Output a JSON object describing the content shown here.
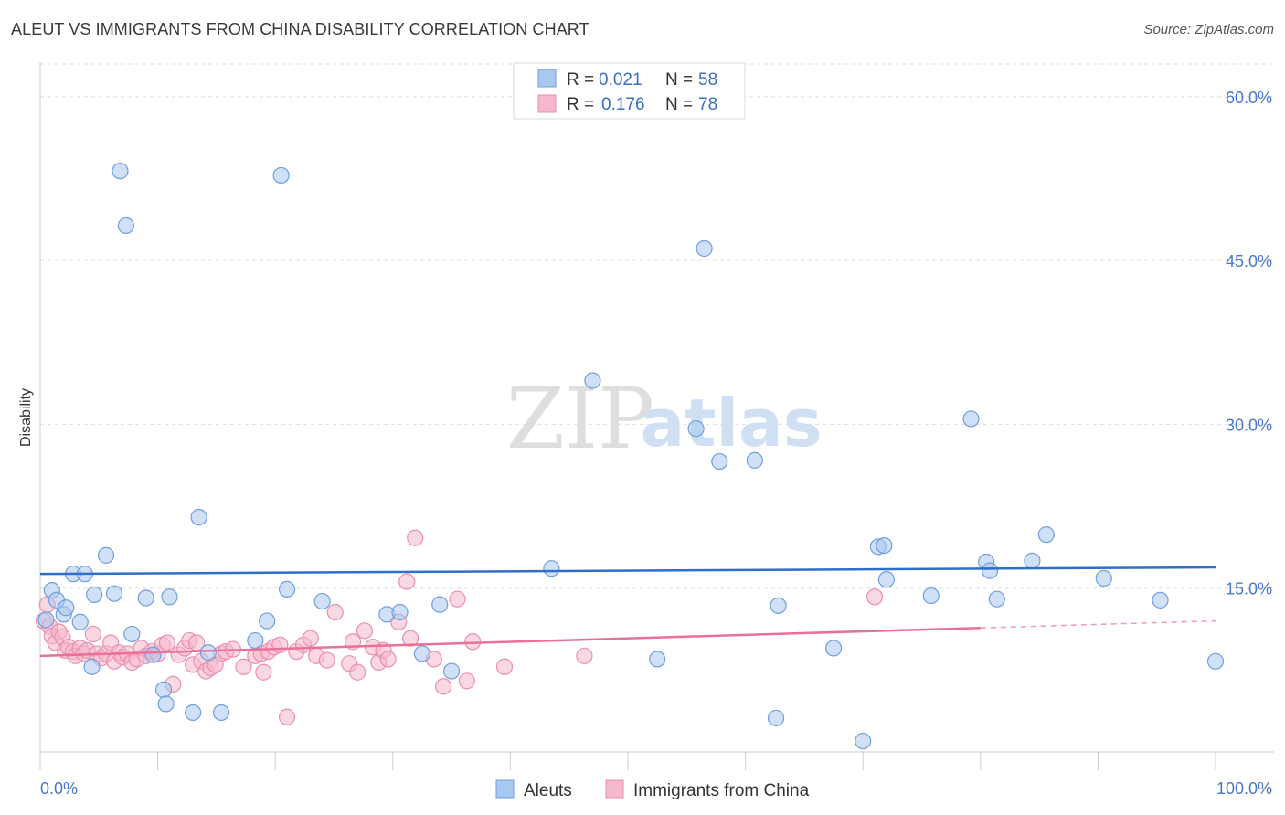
{
  "title": "ALEUT VS IMMIGRANTS FROM CHINA DISABILITY CORRELATION CHART",
  "source": "Source: ZipAtlas.com",
  "watermark": {
    "zip": "ZIP",
    "atlas": "atlas"
  },
  "colors": {
    "aleut_fill": "#a9c8f0",
    "aleut_stroke": "#6f9fdc",
    "aleut_line": "#2f6fc9",
    "china_fill": "#f6b8cb",
    "china_stroke": "#ea8fae",
    "china_line": "#e8709a",
    "tick_label": "#4a78c8",
    "grid": "#dddddd"
  },
  "legend": {
    "r_label": "R =",
    "n_label": "N =",
    "items": [
      {
        "r": "0.021",
        "n": "58"
      },
      {
        "r": "0.176",
        "n": "78"
      }
    ]
  },
  "bottom_legend": [
    "Aleuts",
    "Immigrants from China"
  ],
  "chart_data": {
    "type": "scatter",
    "xlabel": "",
    "ylabel": "Disability",
    "xlim": [
      0,
      100
    ],
    "ylim": [
      0,
      63
    ],
    "x_tick_labels": [
      "0.0%",
      "100.0%"
    ],
    "y_ticks": [
      15,
      30,
      45,
      60
    ],
    "y_tick_labels": [
      "15.0%",
      "30.0%",
      "45.0%",
      "60.0%"
    ],
    "grid": true,
    "legend_position": "top-center",
    "series": [
      {
        "name": "Aleuts",
        "trend": {
          "x": [
            0,
            100
          ],
          "y": [
            16.3,
            16.9
          ],
          "dashed_from": null
        },
        "points": [
          [
            0.5,
            12.1
          ],
          [
            1.0,
            14.8
          ],
          [
            1.4,
            13.9
          ],
          [
            2.0,
            12.6
          ],
          [
            2.2,
            13.2
          ],
          [
            2.8,
            16.3
          ],
          [
            3.4,
            11.9
          ],
          [
            3.8,
            16.3
          ],
          [
            4.4,
            7.8
          ],
          [
            4.6,
            14.4
          ],
          [
            5.6,
            18.0
          ],
          [
            6.3,
            14.5
          ],
          [
            6.8,
            53.2
          ],
          [
            7.3,
            48.2
          ],
          [
            7.8,
            10.8
          ],
          [
            9.0,
            14.1
          ],
          [
            9.6,
            8.9
          ],
          [
            10.5,
            5.7
          ],
          [
            10.7,
            4.4
          ],
          [
            11.0,
            14.2
          ],
          [
            13.0,
            3.6
          ],
          [
            13.5,
            21.5
          ],
          [
            14.3,
            9.1
          ],
          [
            15.4,
            3.6
          ],
          [
            18.3,
            10.2
          ],
          [
            19.3,
            12.0
          ],
          [
            20.5,
            52.8
          ],
          [
            21.0,
            14.9
          ],
          [
            24.0,
            13.8
          ],
          [
            29.5,
            12.6
          ],
          [
            30.6,
            12.8
          ],
          [
            32.5,
            9.0
          ],
          [
            34.0,
            13.5
          ],
          [
            35.0,
            7.4
          ],
          [
            43.5,
            16.8
          ],
          [
            47.0,
            34.0
          ],
          [
            52.5,
            8.5
          ],
          [
            55.8,
            29.6
          ],
          [
            56.5,
            46.1
          ],
          [
            57.8,
            26.6
          ],
          [
            60.8,
            26.7
          ],
          [
            62.6,
            3.1
          ],
          [
            62.8,
            13.4
          ],
          [
            67.5,
            9.5
          ],
          [
            70.0,
            1.0
          ],
          [
            71.3,
            18.8
          ],
          [
            71.8,
            18.9
          ],
          [
            72.0,
            15.8
          ],
          [
            75.8,
            14.3
          ],
          [
            79.2,
            30.5
          ],
          [
            80.5,
            17.4
          ],
          [
            80.8,
            16.6
          ],
          [
            81.4,
            14.0
          ],
          [
            84.4,
            17.5
          ],
          [
            85.6,
            19.9
          ],
          [
            90.5,
            15.9
          ],
          [
            95.3,
            13.9
          ],
          [
            100.0,
            8.3
          ]
        ]
      },
      {
        "name": "Immigrants from China",
        "trend": {
          "x": [
            0,
            100
          ],
          "y": [
            8.8,
            12.0
          ],
          "dashed_from": 80
        },
        "points": [
          [
            0.3,
            12.0
          ],
          [
            0.6,
            13.5
          ],
          [
            0.8,
            11.5
          ],
          [
            1.0,
            10.6
          ],
          [
            1.3,
            10.0
          ],
          [
            1.6,
            11.0
          ],
          [
            1.9,
            10.5
          ],
          [
            2.1,
            9.3
          ],
          [
            2.4,
            9.6
          ],
          [
            2.8,
            9.2
          ],
          [
            3.0,
            8.8
          ],
          [
            3.4,
            9.5
          ],
          [
            3.7,
            9.0
          ],
          [
            4.0,
            9.3
          ],
          [
            4.5,
            10.8
          ],
          [
            4.8,
            9.0
          ],
          [
            5.2,
            8.6
          ],
          [
            5.6,
            9.0
          ],
          [
            6.0,
            10.0
          ],
          [
            6.3,
            8.3
          ],
          [
            6.7,
            9.1
          ],
          [
            7.0,
            8.7
          ],
          [
            7.4,
            9.0
          ],
          [
            7.8,
            8.2
          ],
          [
            8.2,
            8.5
          ],
          [
            8.6,
            9.5
          ],
          [
            9.0,
            8.8
          ],
          [
            9.5,
            9.2
          ],
          [
            10.0,
            9.0
          ],
          [
            10.4,
            9.8
          ],
          [
            10.8,
            10.0
          ],
          [
            11.3,
            6.2
          ],
          [
            11.8,
            8.9
          ],
          [
            12.3,
            9.5
          ],
          [
            12.7,
            10.2
          ],
          [
            13.0,
            8.0
          ],
          [
            13.3,
            10.0
          ],
          [
            13.7,
            8.3
          ],
          [
            14.1,
            7.4
          ],
          [
            14.5,
            7.7
          ],
          [
            14.9,
            8.0
          ],
          [
            15.4,
            9.0
          ],
          [
            15.8,
            9.2
          ],
          [
            16.4,
            9.4
          ],
          [
            17.3,
            7.8
          ],
          [
            18.3,
            8.8
          ],
          [
            18.8,
            9.0
          ],
          [
            19.0,
            7.3
          ],
          [
            19.4,
            9.2
          ],
          [
            19.9,
            9.6
          ],
          [
            20.4,
            9.8
          ],
          [
            21.0,
            3.2
          ],
          [
            21.8,
            9.2
          ],
          [
            22.4,
            9.8
          ],
          [
            23.0,
            10.4
          ],
          [
            23.5,
            8.8
          ],
          [
            24.4,
            8.4
          ],
          [
            25.1,
            12.8
          ],
          [
            26.3,
            8.1
          ],
          [
            26.6,
            10.1
          ],
          [
            27.0,
            7.3
          ],
          [
            27.6,
            11.1
          ],
          [
            28.3,
            9.6
          ],
          [
            28.8,
            8.2
          ],
          [
            29.2,
            9.3
          ],
          [
            29.6,
            8.5
          ],
          [
            30.5,
            11.9
          ],
          [
            31.2,
            15.6
          ],
          [
            31.5,
            10.4
          ],
          [
            31.9,
            19.6
          ],
          [
            33.5,
            8.5
          ],
          [
            34.3,
            6.0
          ],
          [
            35.5,
            14.0
          ],
          [
            36.3,
            6.5
          ],
          [
            36.8,
            10.1
          ],
          [
            39.5,
            7.8
          ],
          [
            46.3,
            8.8
          ],
          [
            71.0,
            14.2
          ]
        ]
      }
    ]
  }
}
